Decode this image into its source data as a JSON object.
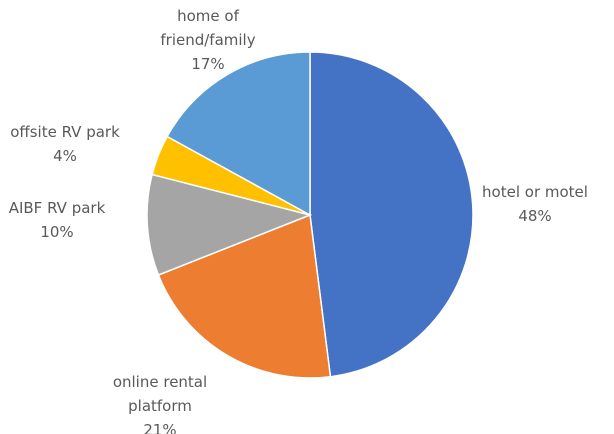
{
  "chart_data": {
    "type": "pie",
    "categories": [
      "hotel or motel",
      "online rental platform",
      "AIBF RV park",
      "offsite RV park",
      "home of friend/family"
    ],
    "values": [
      48,
      21,
      10,
      4,
      17
    ],
    "value_labels": [
      "48%",
      "21%",
      "10%",
      "4%",
      "17%"
    ],
    "colors": [
      "#4472c4",
      "#ed7d31",
      "#a5a5a5",
      "#ffc000",
      "#5b9bd5"
    ]
  }
}
